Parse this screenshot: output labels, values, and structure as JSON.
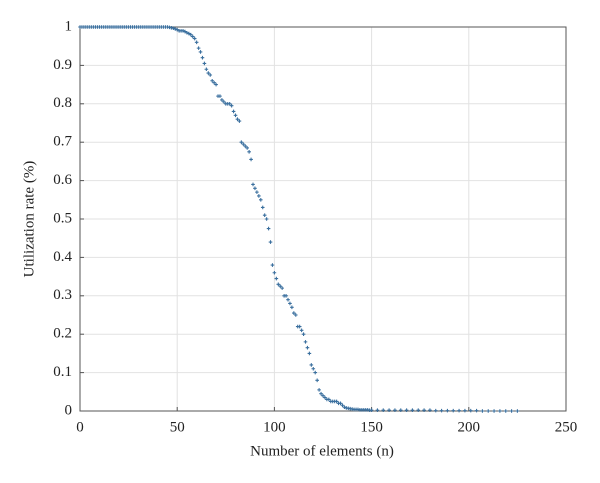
{
  "chart_data": {
    "type": "scatter",
    "xlabel": "Number of elements (n)",
    "ylabel": "Utilization rate (%)",
    "color": "#3a6f9e",
    "grid": true,
    "xlim": [
      0,
      250
    ],
    "ylim": [
      0,
      1
    ],
    "xticks": [
      0,
      50,
      100,
      150,
      200,
      250
    ],
    "yticks": [
      0,
      0.1,
      0.2,
      0.3,
      0.4,
      0.5,
      0.6,
      0.7,
      0.8,
      0.9,
      1
    ],
    "x": [
      0,
      1,
      2,
      3,
      4,
      5,
      6,
      7,
      8,
      9,
      10,
      11,
      12,
      13,
      14,
      15,
      16,
      17,
      18,
      19,
      20,
      21,
      22,
      23,
      24,
      25,
      26,
      27,
      28,
      29,
      30,
      31,
      32,
      33,
      34,
      35,
      36,
      37,
      38,
      39,
      40,
      41,
      42,
      43,
      44,
      45,
      46,
      47,
      48,
      49,
      50,
      51,
      52,
      53,
      54,
      55,
      56,
      57,
      58,
      59,
      60,
      61,
      62,
      63,
      64,
      65,
      66,
      67,
      68,
      69,
      70,
      71,
      72,
      73,
      74,
      75,
      76,
      77,
      78,
      79,
      80,
      81,
      82,
      83,
      84,
      85,
      86,
      87,
      88,
      89,
      90,
      91,
      92,
      93,
      94,
      95,
      96,
      97,
      98,
      99,
      100,
      101,
      102,
      103,
      104,
      105,
      106,
      107,
      108,
      109,
      110,
      111,
      112,
      113,
      114,
      115,
      116,
      117,
      118,
      119,
      120,
      121,
      122,
      123,
      124,
      125,
      126,
      127,
      128,
      129,
      130,
      131,
      132,
      133,
      134,
      135,
      136,
      137,
      138,
      139,
      140,
      141,
      142,
      143,
      144,
      145,
      146,
      147,
      148,
      149,
      150,
      153,
      156,
      159,
      162,
      165,
      168,
      171,
      174,
      177,
      180,
      183,
      186,
      189,
      192,
      195,
      198,
      201,
      204,
      207,
      210,
      213,
      216,
      219,
      222,
      225
    ],
    "y": [
      1,
      1,
      1,
      1,
      1,
      1,
      1,
      1,
      1,
      1,
      1,
      1,
      1,
      1,
      1,
      1,
      1,
      1,
      1,
      1,
      1,
      1,
      1,
      1,
      1,
      1,
      1,
      1,
      1,
      1,
      1,
      1,
      1,
      1,
      1,
      1,
      1,
      1,
      1,
      1,
      1,
      1,
      1,
      1,
      1,
      1,
      0.999,
      0.998,
      0.997,
      0.995,
      0.993,
      0.99,
      0.99,
      0.99,
      0.988,
      0.985,
      0.983,
      0.98,
      0.975,
      0.97,
      0.96,
      0.945,
      0.935,
      0.92,
      0.905,
      0.89,
      0.88,
      0.875,
      0.86,
      0.855,
      0.85,
      0.82,
      0.82,
      0.81,
      0.805,
      0.8,
      0.8,
      0.8,
      0.795,
      0.78,
      0.77,
      0.76,
      0.755,
      0.7,
      0.695,
      0.69,
      0.685,
      0.675,
      0.655,
      0.59,
      0.58,
      0.57,
      0.56,
      0.55,
      0.53,
      0.51,
      0.5,
      0.475,
      0.44,
      0.38,
      0.36,
      0.345,
      0.33,
      0.325,
      0.32,
      0.3,
      0.3,
      0.29,
      0.28,
      0.27,
      0.255,
      0.25,
      0.22,
      0.22,
      0.21,
      0.2,
      0.18,
      0.165,
      0.15,
      0.12,
      0.11,
      0.1,
      0.08,
      0.055,
      0.045,
      0.04,
      0.035,
      0.03,
      0.03,
      0.025,
      0.025,
      0.025,
      0.025,
      0.02,
      0.02,
      0.015,
      0.01,
      0.008,
      0.007,
      0.006,
      0.005,
      0.004,
      0.004,
      0.004,
      0.003,
      0.003,
      0.003,
      0.003,
      0.003,
      0.002,
      0.002,
      0.002,
      0.002,
      0.002,
      0.002,
      0.002,
      0.002,
      0.002,
      0.002,
      0.002,
      0.002,
      0.001,
      0.001,
      0.001,
      0.001,
      0.001,
      0.001,
      0.001,
      0.001,
      0,
      0,
      0,
      0,
      0,
      0,
      0
    ]
  }
}
